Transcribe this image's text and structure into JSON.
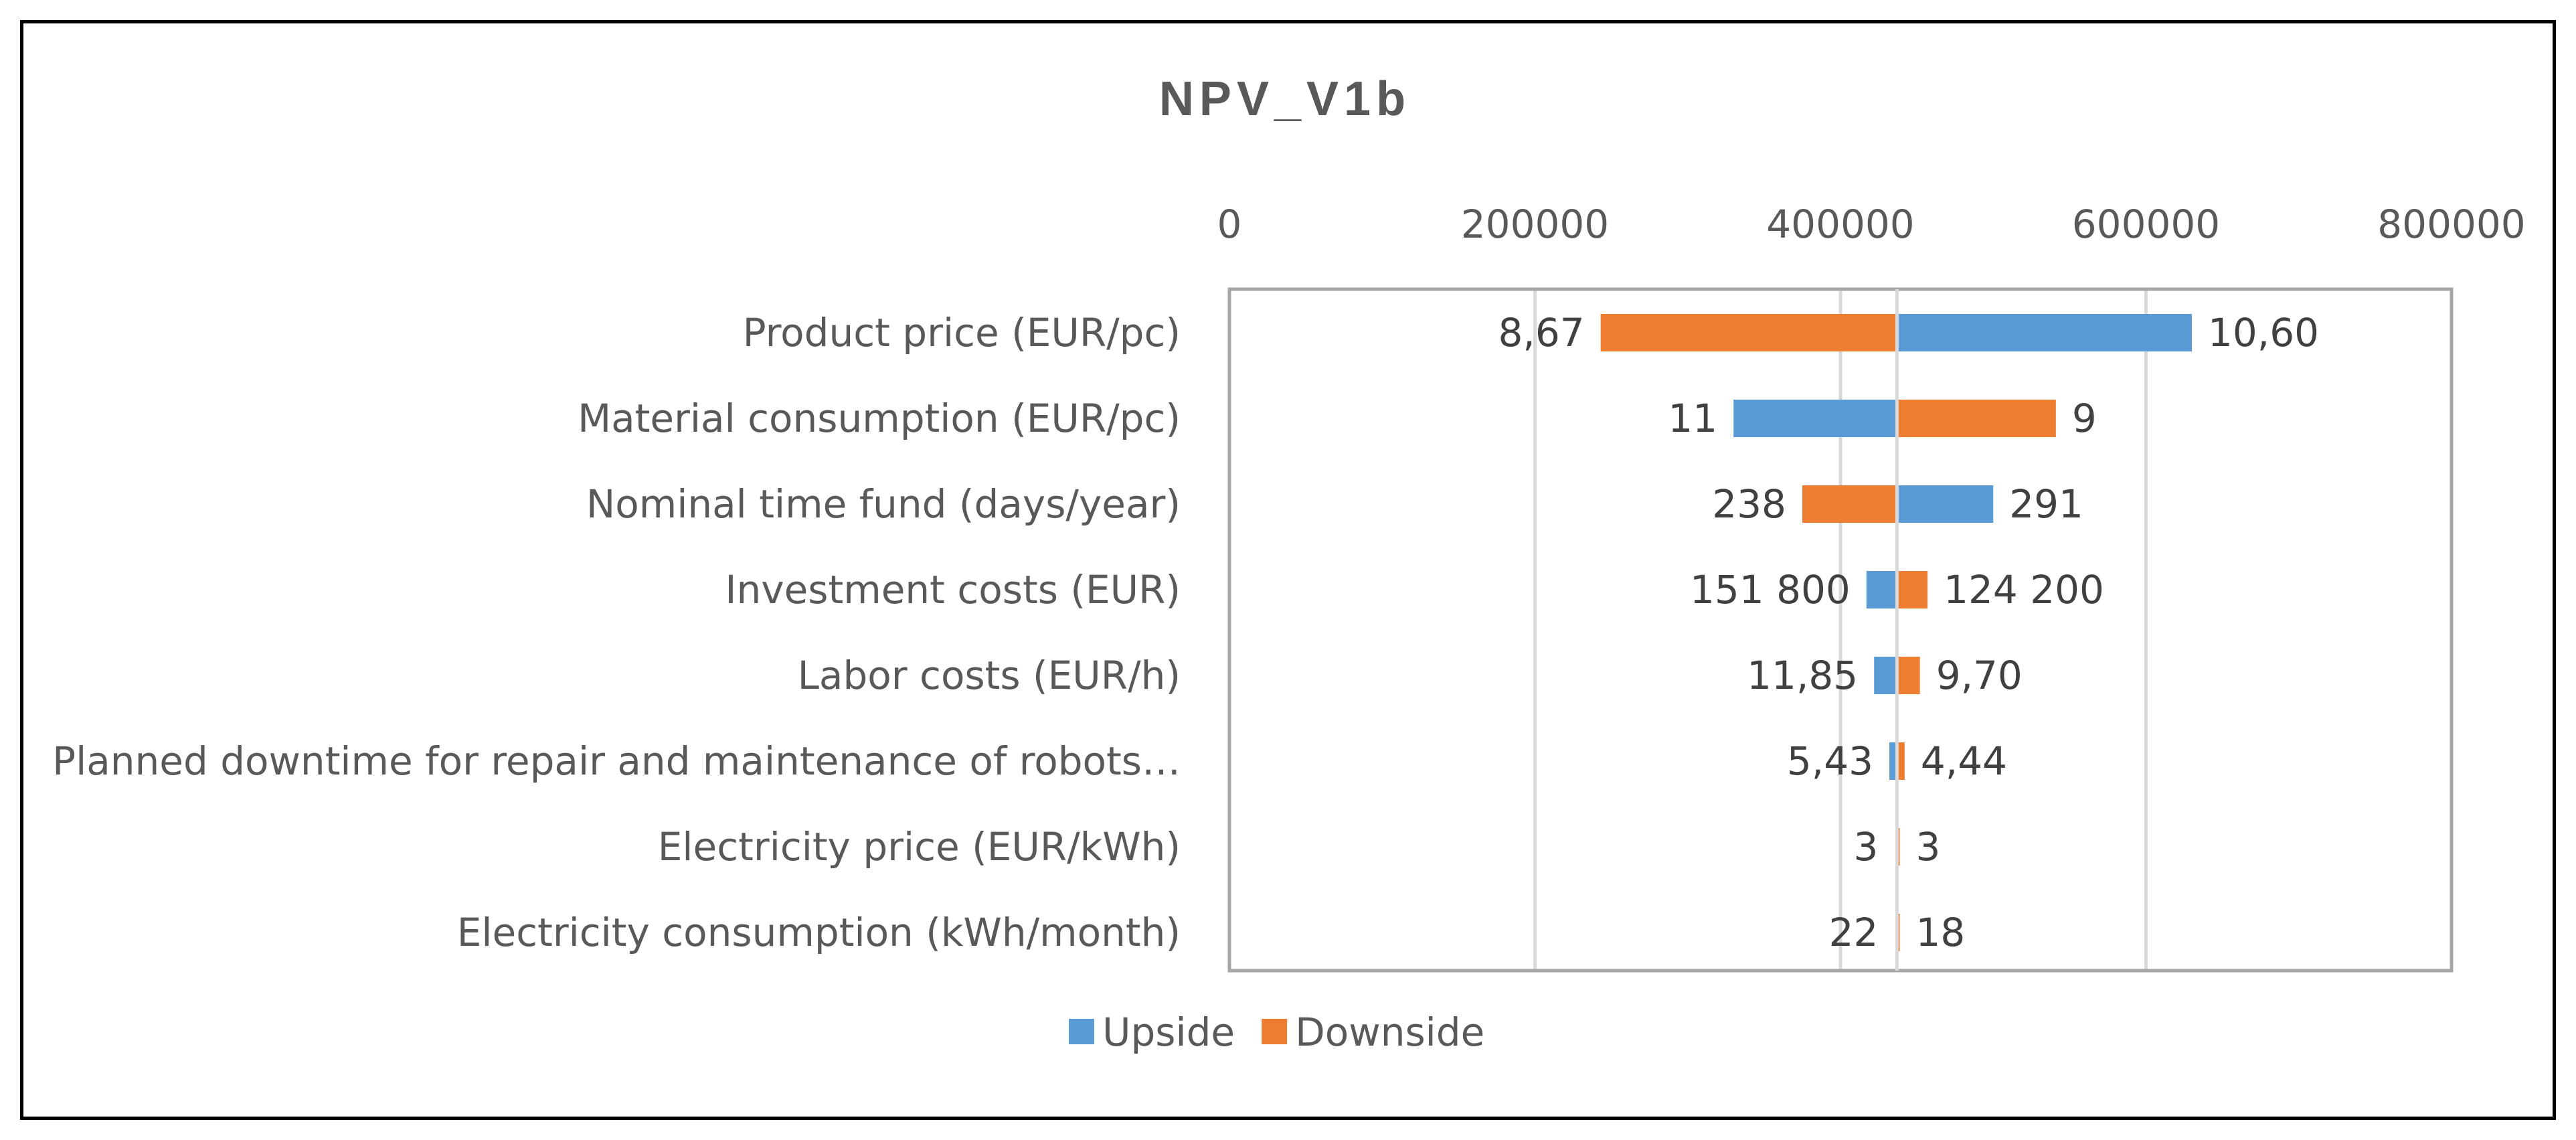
{
  "colors": {
    "upside": "#5B9BD5",
    "downside": "#ED7D31",
    "grid": "#D9D9D9",
    "plot_border": "#A6A6A6",
    "text": "#595959"
  },
  "chart_data": {
    "type": "bar",
    "orientation": "horizontal",
    "variant": "tornado",
    "title": "NPV_V1b",
    "xlim": [
      0,
      800000
    ],
    "x_ticks": [
      0,
      200000,
      400000,
      600000,
      800000
    ],
    "x_tick_labels": [
      "0",
      "200000",
      "400000",
      "600000",
      "800000"
    ],
    "x_axis_position": "top",
    "base_value": 437000,
    "grid": true,
    "legend_position": "bottom",
    "categories": [
      "Product price (EUR/pc)",
      "Material consumption (EUR/pc)",
      "Nominal time fund (days/year)",
      "Investment costs (EUR)",
      "Labor costs (EUR/h)",
      "Planned downtime for repair and maintenance of robots…",
      "Electricity price (EUR/kWh)",
      "Electricity consumption (kWh/month)"
    ],
    "series": [
      {
        "name": "Upside",
        "color": "#5B9BD5",
        "values": [
          630000,
          330000,
          500000,
          417000,
          422000,
          432000,
          436000,
          436000
        ],
        "labels": [
          "10,60",
          "11",
          "291",
          "151 800",
          "11,85",
          "5,43",
          "3",
          "22"
        ]
      },
      {
        "name": "Downside",
        "color": "#ED7D31",
        "values": [
          243000,
          541000,
          375000,
          457000,
          452000,
          442000,
          438000,
          438000
        ],
        "labels": [
          "8,67",
          "9",
          "238",
          "124 200",
          "9,70",
          "4,44",
          "3",
          "18"
        ]
      }
    ]
  }
}
